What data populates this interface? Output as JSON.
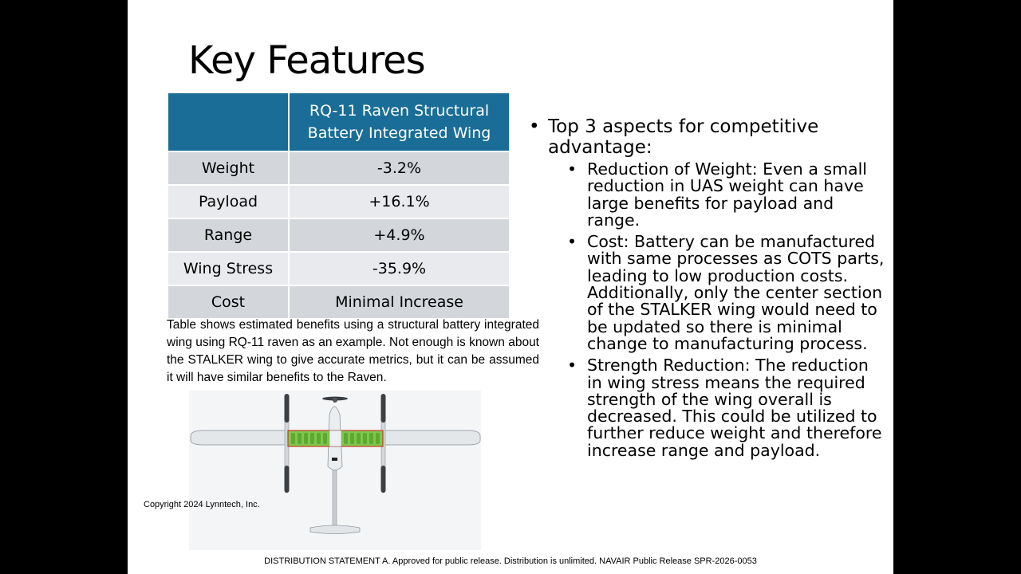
{
  "title": "Key Features",
  "table": {
    "header": [
      "",
      "RQ-11 Raven Structural Battery Integrated Wing"
    ],
    "rows": [
      [
        "Weight",
        "-3.2%"
      ],
      [
        "Payload",
        "+16.1%"
      ],
      [
        "Range",
        "+4.9%"
      ],
      [
        "Wing Stress",
        "-35.9%"
      ],
      [
        "Cost",
        "Minimal Increase"
      ]
    ]
  },
  "caption": "Table shows estimated benefits using a structural battery integrated wing using RQ-11 raven as an example. Not enough is known about the STALKER wing to give accurate metrics, but it can be assumed it will have similar benefits to the Raven.",
  "image_copyright": "Copyright 2024 Lynntech, Inc.",
  "bullets": {
    "main": "Top 3 aspects for competitive advantage:",
    "sub": [
      "Reduction of Weight: Even a small reduction in UAS weight can have large benefits for payload and range.",
      "Cost: Battery can be manufactured with same processes as COTS parts, leading to low production costs. Additionally, only the center section of the STALKER wing would need to be updated so there is minimal change to manufacturing process.",
      "Strength Reduction: The reduction in wing stress means the required strength of the wing overall is decreased. This could be utilized to further reduce weight and therefore increase range and payload."
    ]
  },
  "footer": "DISTRIBUTION STATEMENT A. Approved for public release. Distribution is unlimited. NAVAIR Public Release SPR-2026-0053",
  "colors": {
    "header_bg": "#1a6d96",
    "row_dark": "#d3d7dc",
    "row_light": "#e8eaed",
    "battery": "#7dc84a"
  }
}
